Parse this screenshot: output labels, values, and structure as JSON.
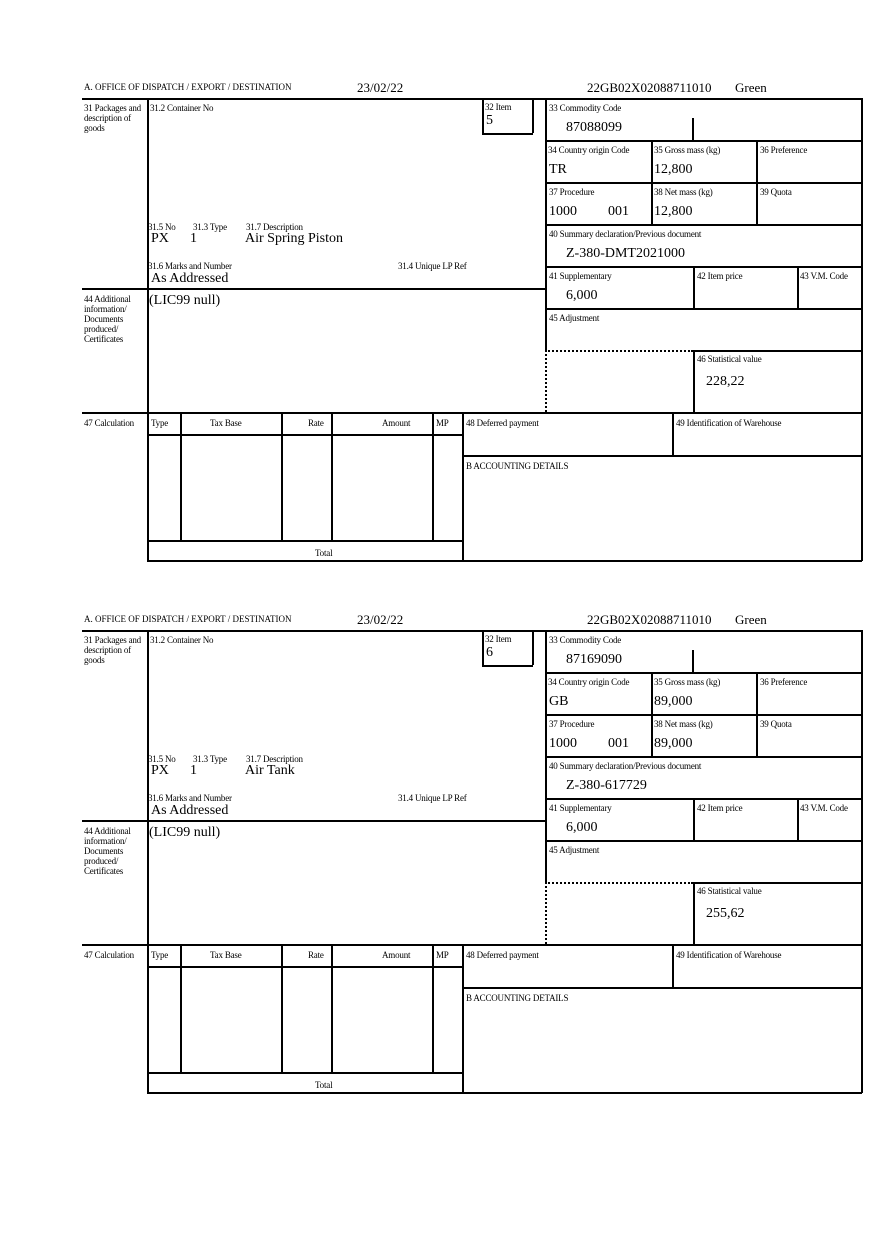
{
  "forms": [
    {
      "header": {
        "office": "A. OFFICE OF DISPATCH / EXPORT / DESTINATION",
        "date": "23/02/22",
        "reference": "22GB02X02088711010",
        "route": "Green"
      },
      "labels": {
        "packages": "31 Packages and description of goods",
        "container": "31.2 Container No",
        "item": "32 Item",
        "pkg_no": "31.5 No",
        "pkg_type": "31.3 Type",
        "description": "31.7 Description",
        "marks": "31.6 Marks and Number",
        "unique_ref": "31.4 Unique LP Ref",
        "commodity": "33 Commodity Code",
        "origin": "34 Country origin Code",
        "gross": "35 Gross mass (kg)",
        "preference": "36 Preference",
        "procedure": "37 Procedure",
        "net": "38 Net mass (kg)",
        "quota": "39 Quota",
        "summary": "40 Summary declaration/Previous document",
        "supplementary": "41 Supplementary",
        "item_price": "42 Item price",
        "vm_code": "43 V.M. Code",
        "additional": "44 Additional information/ Documents produced/ Certificates",
        "adjustment": "45 Adjustment",
        "stat_value": "46 Statistical value",
        "calculation": "47 Calculation",
        "calc_type": "Type",
        "calc_tax_base": "Tax Base",
        "calc_rate": "Rate",
        "calc_amount": "Amount",
        "calc_mp": "MP",
        "deferred": "48 Deferred payment",
        "warehouse": "49 Identification of Warehouse",
        "accounting": "B ACCOUNTING DETAILS",
        "total": "Total"
      },
      "values": {
        "item": "5",
        "pkg_no": "PX",
        "pkg_type": "1",
        "description": "Air Spring Piston",
        "marks": "As Addressed",
        "commodity": "87088099",
        "origin": "TR",
        "gross": "12,800",
        "procedure": "1000",
        "procedure_ext": "001",
        "net": "12,800",
        "summary": "Z-380-DMT2021000",
        "supplementary": "6,000",
        "additional": "(LIC99 null)",
        "stat_value": "228,22"
      }
    },
    {
      "header": {
        "office": "A. OFFICE OF DISPATCH / EXPORT / DESTINATION",
        "date": "23/02/22",
        "reference": "22GB02X02088711010",
        "route": "Green"
      },
      "labels": {
        "packages": "31 Packages and description of goods",
        "container": "31.2 Container No",
        "item": "32 Item",
        "pkg_no": "31.5 No",
        "pkg_type": "31.3 Type",
        "description": "31.7 Description",
        "marks": "31.6 Marks and Number",
        "unique_ref": "31.4 Unique LP Ref",
        "commodity": "33 Commodity Code",
        "origin": "34 Country origin Code",
        "gross": "35 Gross mass (kg)",
        "preference": "36 Preference",
        "procedure": "37 Procedure",
        "net": "38 Net mass (kg)",
        "quota": "39 Quota",
        "summary": "40 Summary declaration/Previous document",
        "supplementary": "41 Supplementary",
        "item_price": "42 Item price",
        "vm_code": "43 V.M. Code",
        "additional": "44 Additional information/ Documents produced/ Certificates",
        "adjustment": "45 Adjustment",
        "stat_value": "46 Statistical value",
        "calculation": "47 Calculation",
        "calc_type": "Type",
        "calc_tax_base": "Tax Base",
        "calc_rate": "Rate",
        "calc_amount": "Amount",
        "calc_mp": "MP",
        "deferred": "48 Deferred payment",
        "warehouse": "49 Identification of Warehouse",
        "accounting": "B ACCOUNTING DETAILS",
        "total": "Total"
      },
      "values": {
        "item": "6",
        "pkg_no": "PX",
        "pkg_type": "1",
        "description": "Air Tank",
        "marks": "As Addressed",
        "commodity": "87169090",
        "origin": "GB",
        "gross": "89,000",
        "procedure": "1000",
        "procedure_ext": "001",
        "net": "89,000",
        "summary": "Z-380-617729",
        "supplementary": "6,000",
        "additional": "(LIC99 null)",
        "stat_value": "255,62"
      }
    }
  ]
}
